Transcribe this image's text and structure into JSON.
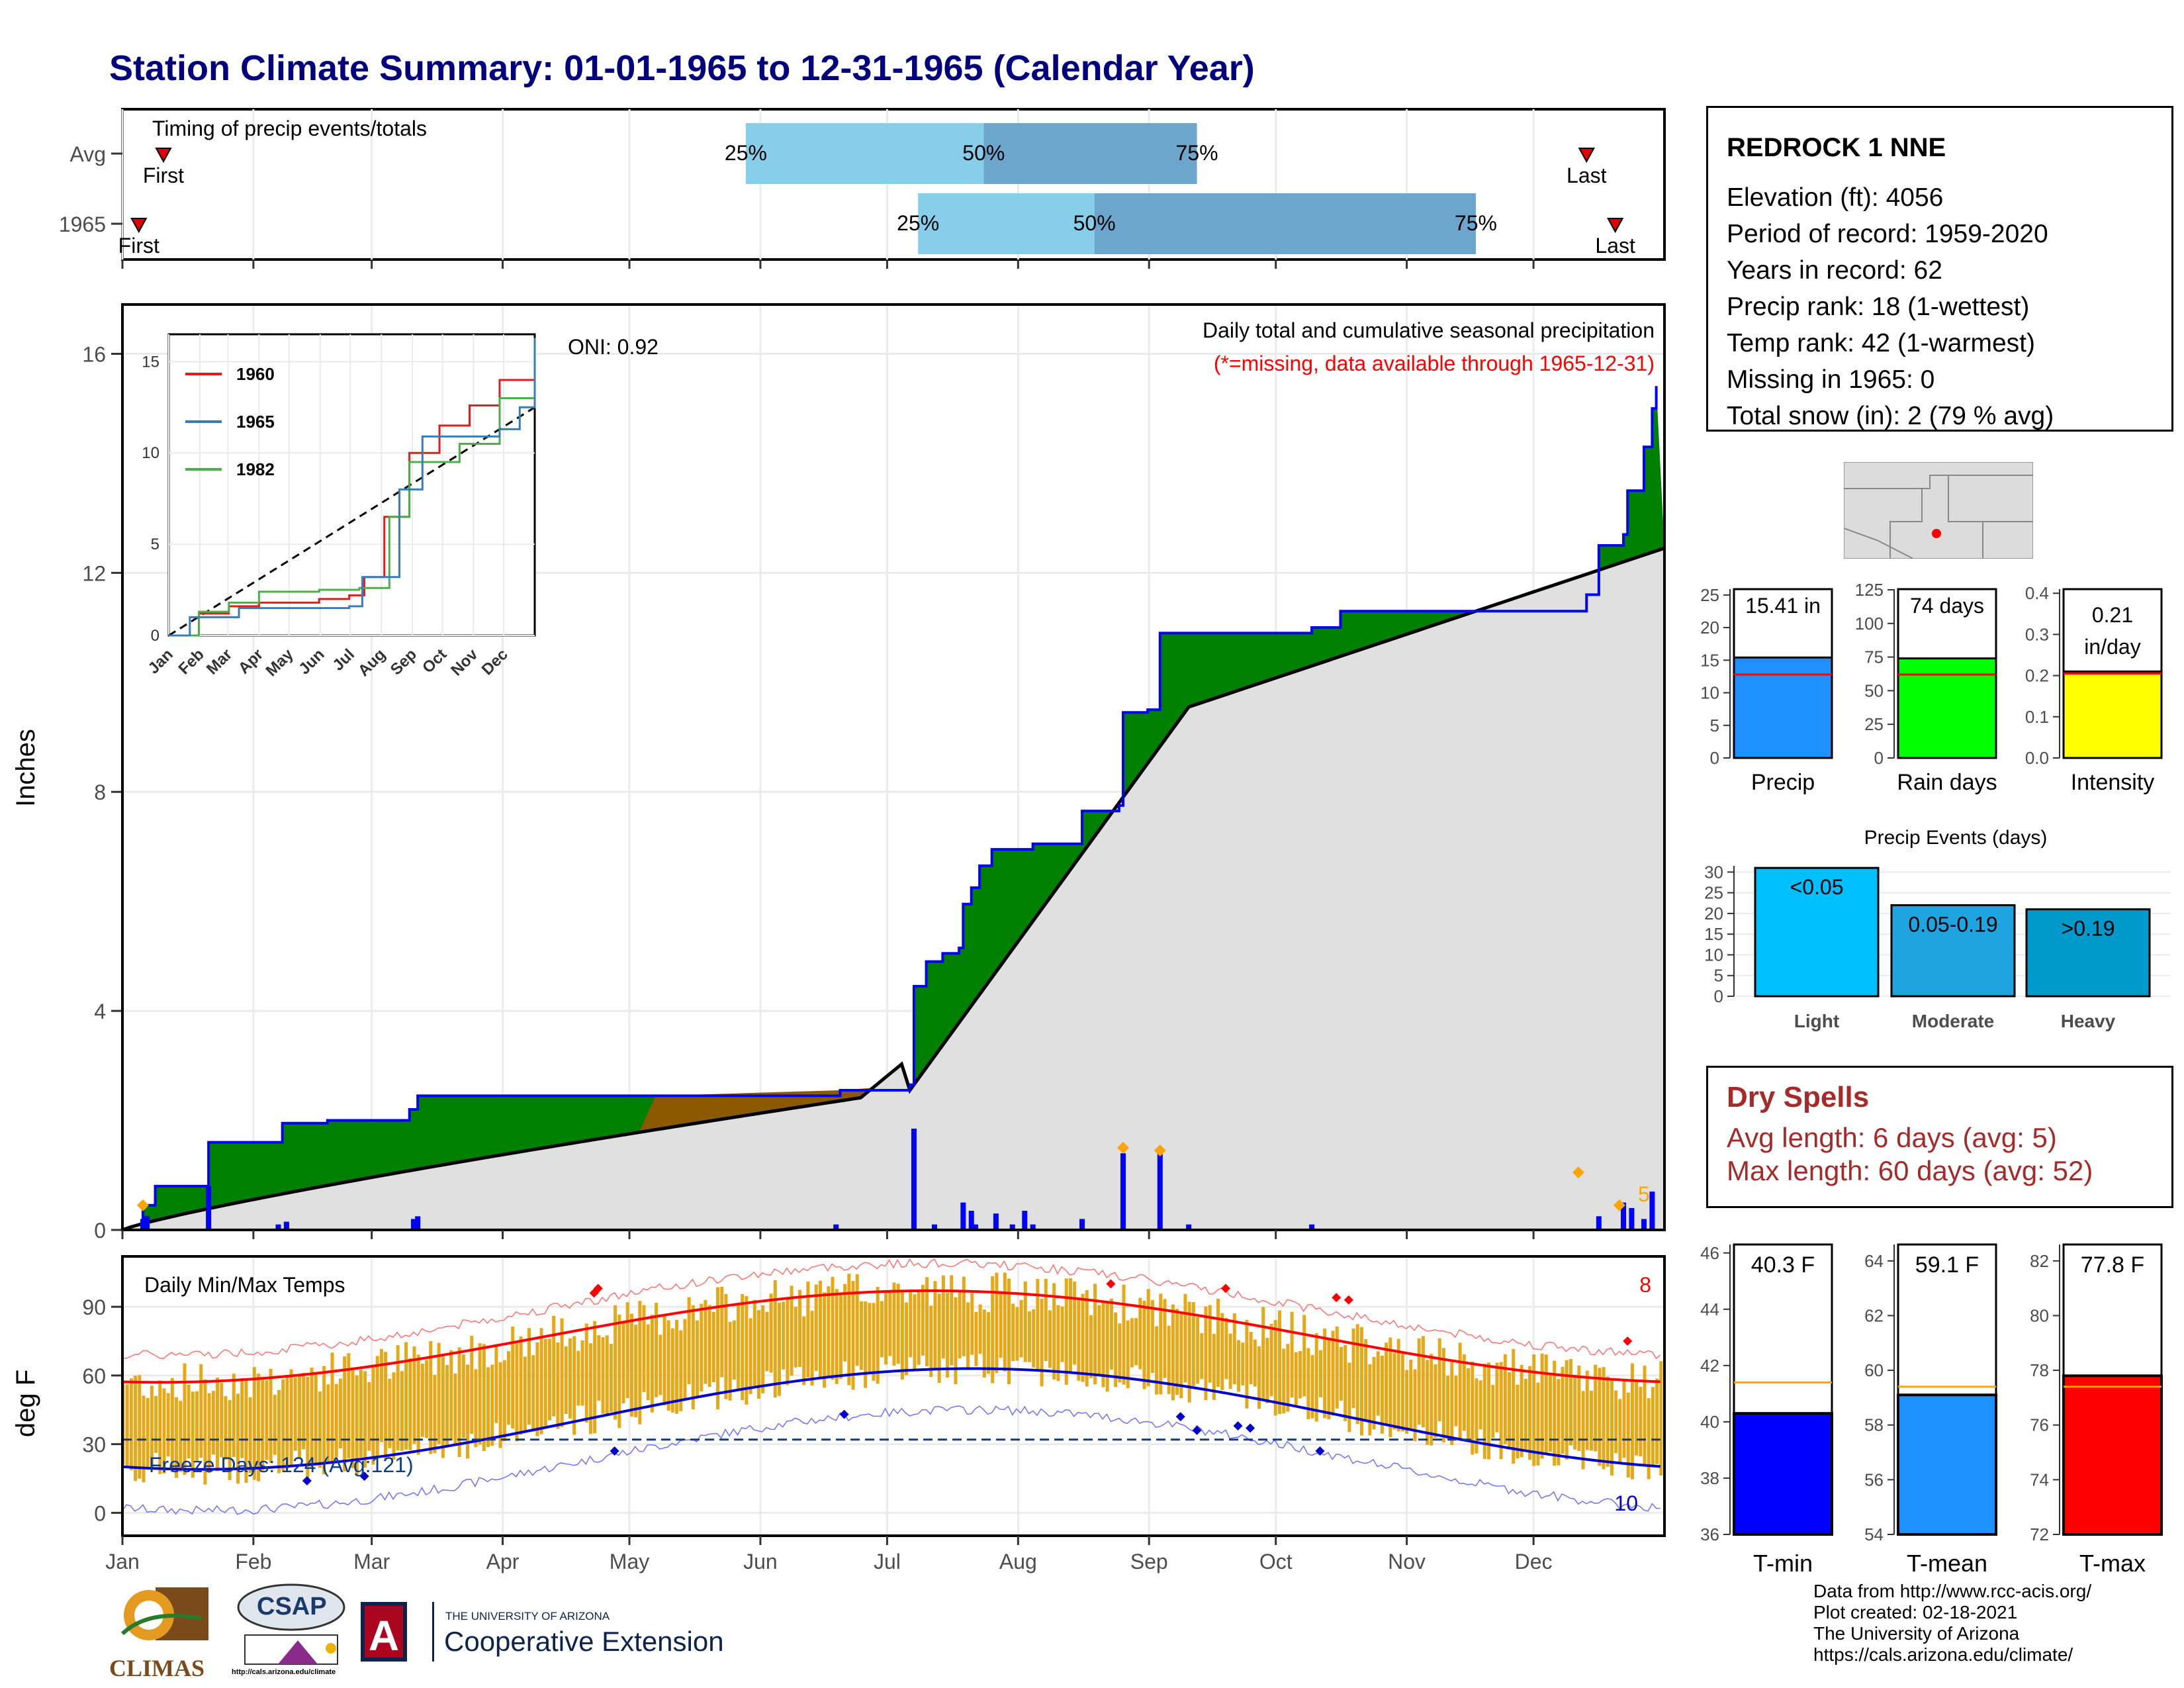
{
  "title": "Station Climate Summary: 01-01-1965 to 12-31-1965 (Calendar Year)",
  "months": [
    "Jan",
    "Feb",
    "Mar",
    "Apr",
    "May",
    "Jun",
    "Jul",
    "Aug",
    "Sep",
    "Oct",
    "Nov",
    "Dec"
  ],
  "station": {
    "name": "REDROCK 1 NNE",
    "lines": [
      "Elevation (ft): 4056",
      "Period of record: 1959-2020",
      "Years in record: 62",
      "Precip rank: 18 (1-wettest)",
      "Temp rank: 42 (1-warmest)",
      "Missing in 1965: 0",
      "Total snow (in): 2 (79 % avg)"
    ]
  },
  "timing": {
    "title": "Timing of precip events/totals",
    "rows": [
      {
        "label": "Avg",
        "first_label": "First",
        "last_label": "Last",
        "first_day": 10,
        "last_day": 357,
        "q25_label": "25%",
        "q50_label": "50%",
        "q75_label": "75%",
        "q25": 152,
        "q50": 210,
        "q75": 262
      },
      {
        "label": "1965",
        "first_label": "First",
        "last_label": "Last",
        "first_day": 4,
        "last_day": 364,
        "q25_label": "25%",
        "q50_label": "50%",
        "q75_label": "75%",
        "q25": 194,
        "q50": 237,
        "q75": 330
      }
    ]
  },
  "precip_panel": {
    "title": "Daily total and cumulative seasonal precipitation",
    "subtitle": "(*=missing, data available through 1965-12-31)",
    "oni": "ONI: 0.92",
    "ylabel": "Inches",
    "yticks": [
      0,
      4,
      8,
      12,
      16
    ],
    "ymax": 16.9,
    "corner_count": "5"
  },
  "inset": {
    "yticks": [
      0,
      5,
      10,
      15
    ],
    "legend": [
      "1960",
      "1965",
      "1982"
    ]
  },
  "temp_panel": {
    "title": "Daily Min/Max Temps",
    "ylabel": "deg F",
    "yticks": [
      0,
      30,
      60,
      90
    ],
    "freeze_label": "Freeze Days: 124 (Avg:121)",
    "count_high": "8",
    "count_low": "10"
  },
  "mini_bars": [
    {
      "id": "precip",
      "label": "Precip",
      "value_label": "15.41 in",
      "value": 15.41,
      "avg": 12.8,
      "yticks": [
        0,
        5,
        10,
        15,
        20,
        25
      ],
      "ymax": 25.9,
      "color": "#1e90ff"
    },
    {
      "id": "raindays",
      "label": "Rain days",
      "value_label": "74 days",
      "value": 74,
      "avg": 62,
      "yticks": [
        0,
        25,
        50,
        75,
        100,
        125
      ],
      "ymax": 125.5,
      "color": "#00ff00"
    },
    {
      "id": "intensity",
      "label": "Intensity",
      "value_label": "0.21 in/day",
      "value": 0.21,
      "avg": 0.205,
      "yticks": [
        "0.0",
        "0.1",
        "0.2",
        "0.3",
        "0.4"
      ],
      "ymax": 0.41,
      "color": "#ffff00"
    }
  ],
  "events": {
    "title": "Precip Events (days)",
    "yticks": [
      0,
      5,
      10,
      15,
      20,
      25,
      30
    ],
    "ymax": 31.5,
    "bars": [
      {
        "name": "Light",
        "label": "<0.05",
        "value": 31,
        "color": "#00bfff"
      },
      {
        "name": "Moderate",
        "label": "0.05-0.19",
        "value": 22,
        "color": "#1ea5e0"
      },
      {
        "name": "Heavy",
        "label": ">0.19",
        "value": 21,
        "color": "#0099cc"
      }
    ]
  },
  "dry_spells": {
    "title": "Dry Spells",
    "avg_line": "Avg length: 6 days (avg: 5)",
    "max_line": "Max length: 60 days (avg: 52)"
  },
  "temp_bars": [
    {
      "id": "tmin",
      "label": "T-min",
      "value_label": "40.3 F",
      "value": 40.3,
      "avg": 41.4,
      "ymin": 36,
      "ymax": 46.3,
      "yticks": [
        36,
        38,
        40,
        42,
        44,
        46
      ],
      "color": "#0000ff"
    },
    {
      "id": "tmean",
      "label": "T-mean",
      "value_label": "59.1 F",
      "value": 59.1,
      "avg": 59.4,
      "ymin": 54,
      "ymax": 64.6,
      "yticks": [
        54,
        56,
        58,
        60,
        62,
        64
      ],
      "color": "#1e90ff"
    },
    {
      "id": "tmax",
      "label": "T-max",
      "value_label": "77.8 F",
      "value": 77.8,
      "avg": 77.4,
      "ymin": 72,
      "ymax": 82.6,
      "yticks": [
        72,
        74,
        76,
        78,
        80,
        82
      ],
      "color": "#ff0000"
    }
  ],
  "footer": {
    "lines": [
      "Data from http://www.rcc-acis.org/",
      "Plot created: 02-18-2021",
      "The University of Arizona",
      "https://cals.arizona.edu/climate/"
    ]
  },
  "logos": {
    "climas": "CLIMAS",
    "csap": "CSAP",
    "csap_url": "http://cals.arizona.edu/climate",
    "ua_small": "THE UNIVERSITY OF ARIZONA",
    "ua_big": "Cooperative Extension"
  },
  "chart_data": {
    "type": "area",
    "title": "Daily total and cumulative seasonal precipitation",
    "ylabel": "Inches",
    "ylim": [
      0,
      16.9
    ],
    "cumulative_1965": [
      {
        "day": 1,
        "value": 0.0
      },
      {
        "day": 5,
        "value": 0.45
      },
      {
        "day": 8,
        "value": 0.8
      },
      {
        "day": 20,
        "value": 0.8
      },
      {
        "day": 21,
        "value": 1.6
      },
      {
        "day": 38,
        "value": 1.6
      },
      {
        "day": 39,
        "value": 1.95
      },
      {
        "day": 50,
        "value": 2.0
      },
      {
        "day": 65,
        "value": 2.0
      },
      {
        "day": 70,
        "value": 2.2
      },
      {
        "day": 72,
        "value": 2.45
      },
      {
        "day": 100,
        "value": 2.45
      },
      {
        "day": 125,
        "value": 2.45
      },
      {
        "day": 130,
        "value": 2.45
      },
      {
        "day": 175,
        "value": 2.55
      },
      {
        "day": 192,
        "value": 2.65
      },
      {
        "day": 193,
        "value": 4.45
      },
      {
        "day": 196,
        "value": 4.9
      },
      {
        "day": 200,
        "value": 5.05
      },
      {
        "day": 204,
        "value": 5.15
      },
      {
        "day": 205,
        "value": 5.95
      },
      {
        "day": 207,
        "value": 6.25
      },
      {
        "day": 209,
        "value": 6.65
      },
      {
        "day": 212,
        "value": 6.95
      },
      {
        "day": 222,
        "value": 7.05
      },
      {
        "day": 234,
        "value": 7.65
      },
      {
        "day": 243,
        "value": 7.75
      },
      {
        "day": 244,
        "value": 9.45
      },
      {
        "day": 250,
        "value": 9.5
      },
      {
        "day": 253,
        "value": 10.9
      },
      {
        "day": 290,
        "value": 11.0
      },
      {
        "day": 297,
        "value": 11.3
      },
      {
        "day": 355,
        "value": 11.3
      },
      {
        "day": 357,
        "value": 11.6
      },
      {
        "day": 360,
        "value": 12.5
      },
      {
        "day": 366,
        "value": 12.7
      },
      {
        "day": 367,
        "value": 13.5
      },
      {
        "day": 371,
        "value": 14.3
      },
      {
        "day": 373,
        "value": 15.0
      },
      {
        "day": 374,
        "value": 15.41
      }
    ],
    "daily_events": [
      {
        "day": 5,
        "value": 0.2
      },
      {
        "day": 6,
        "value": 0.25
      },
      {
        "day": 21,
        "value": 0.8
      },
      {
        "day": 38,
        "value": 0.1
      },
      {
        "day": 40,
        "value": 0.15
      },
      {
        "day": 71,
        "value": 0.2
      },
      {
        "day": 72,
        "value": 0.25
      },
      {
        "day": 174,
        "value": 0.1
      },
      {
        "day": 193,
        "value": 1.85
      },
      {
        "day": 198,
        "value": 0.1
      },
      {
        "day": 205,
        "value": 0.5
      },
      {
        "day": 207,
        "value": 0.35
      },
      {
        "day": 208,
        "value": 0.1
      },
      {
        "day": 213,
        "value": 0.3
      },
      {
        "day": 217,
        "value": 0.1
      },
      {
        "day": 220,
        "value": 0.35
      },
      {
        "day": 222,
        "value": 0.1
      },
      {
        "day": 234,
        "value": 0.2
      },
      {
        "day": 244,
        "value": 1.4
      },
      {
        "day": 253,
        "value": 1.4
      },
      {
        "day": 260,
        "value": 0.1
      },
      {
        "day": 290,
        "value": 0.1
      },
      {
        "day": 360,
        "value": 0.25
      },
      {
        "day": 366,
        "value": 0.5
      },
      {
        "day": 368,
        "value": 0.4
      },
      {
        "day": 371,
        "value": 0.2
      },
      {
        "day": 373,
        "value": 0.7
      }
    ]
  }
}
